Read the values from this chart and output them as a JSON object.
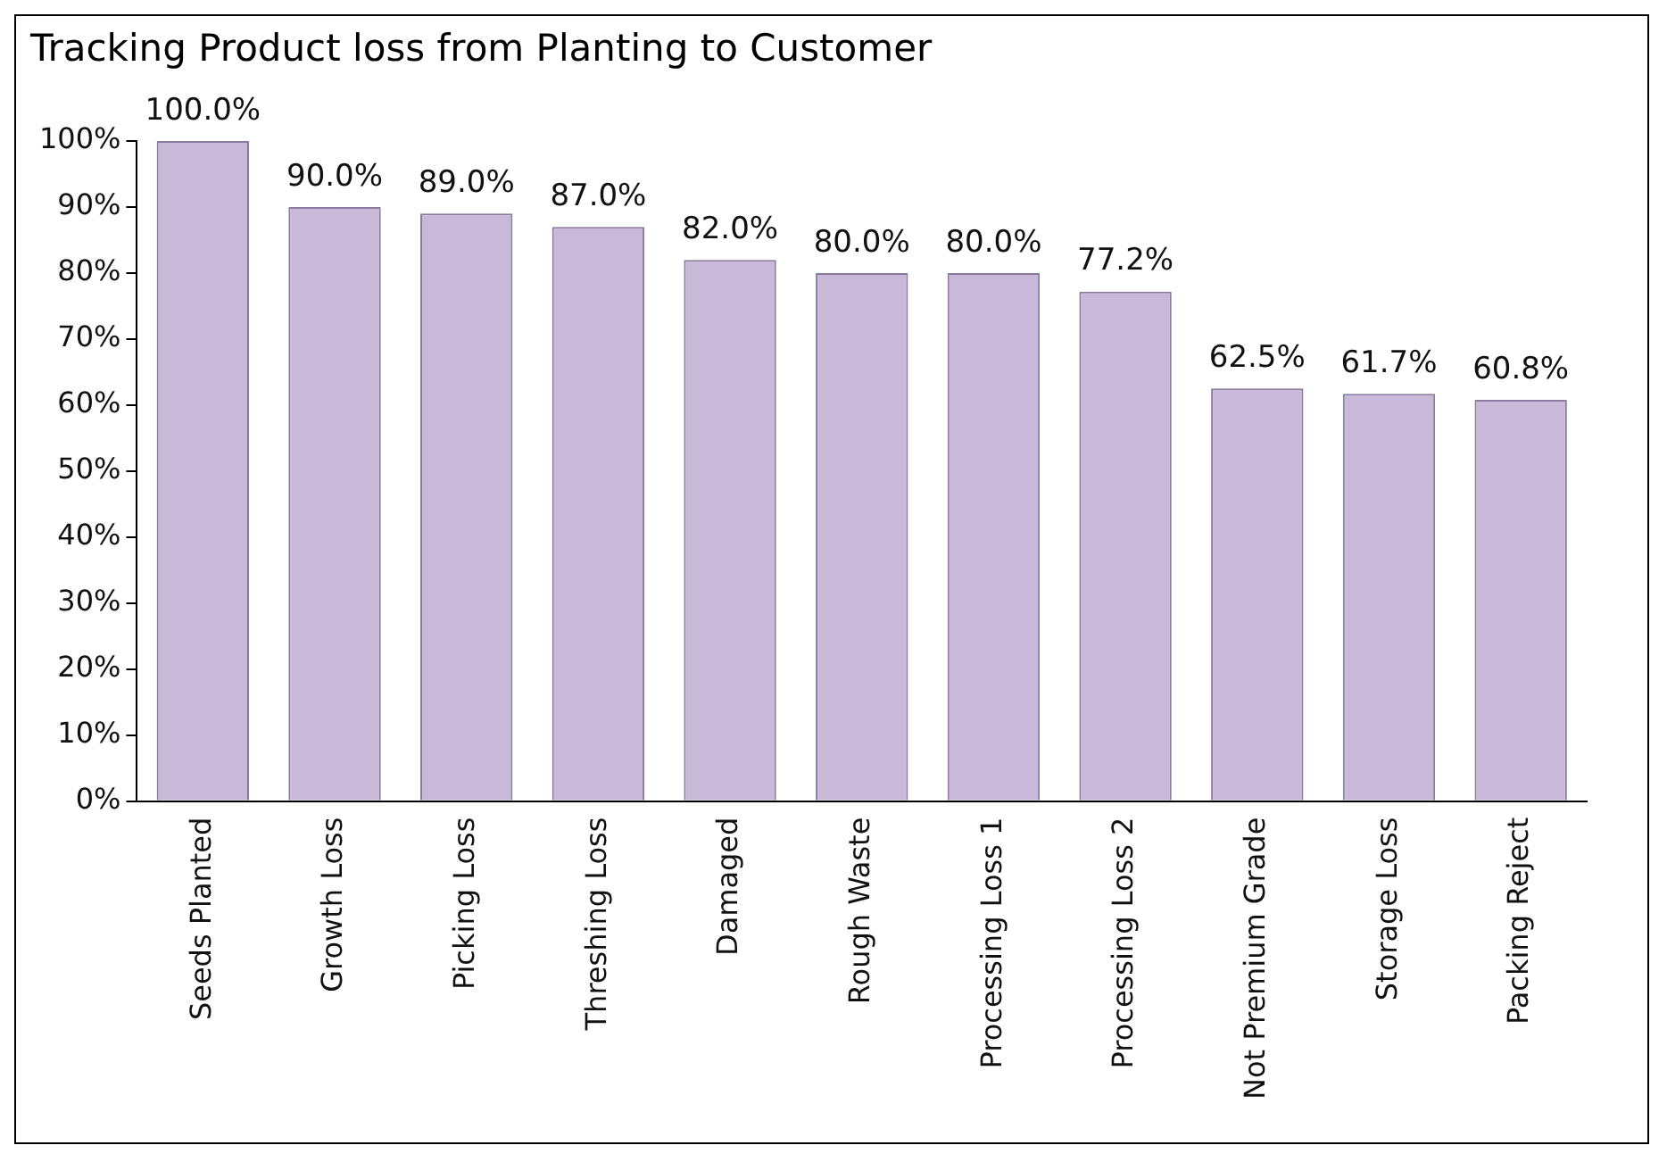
{
  "chart_data": {
    "type": "bar",
    "title": "Tracking Product loss from Planting to Customer",
    "categories": [
      "Seeds Planted",
      "Growth Loss",
      "Picking Loss",
      "Threshing Loss",
      "Damaged",
      "Rough Waste",
      "Processing Loss 1",
      "Processing Loss 2",
      "Not Premium Grade",
      "Storage Loss",
      "Packing Reject"
    ],
    "values": [
      100.0,
      90.0,
      89.0,
      87.0,
      82.0,
      80.0,
      80.0,
      77.2,
      62.5,
      61.7,
      60.8
    ],
    "value_labels": [
      "100.0%",
      "90.0%",
      "89.0%",
      "87.0%",
      "82.0%",
      "80.0%",
      "80.0%",
      "77.2%",
      "62.5%",
      "61.7%",
      "60.8%"
    ],
    "color": "#c9b9d9",
    "ylim": [
      0,
      100
    ],
    "yticks": [
      {
        "value": 0,
        "label": "0%"
      },
      {
        "value": 10,
        "label": "10%"
      },
      {
        "value": 20,
        "label": "20%"
      },
      {
        "value": 30,
        "label": "30%"
      },
      {
        "value": 40,
        "label": "40%"
      },
      {
        "value": 50,
        "label": "50%"
      },
      {
        "value": 60,
        "label": "60%"
      },
      {
        "value": 70,
        "label": "70%"
      },
      {
        "value": 80,
        "label": "80%"
      },
      {
        "value": 90,
        "label": "90%"
      },
      {
        "value": 100,
        "label": "100%"
      }
    ],
    "grid": false,
    "legend": false
  }
}
